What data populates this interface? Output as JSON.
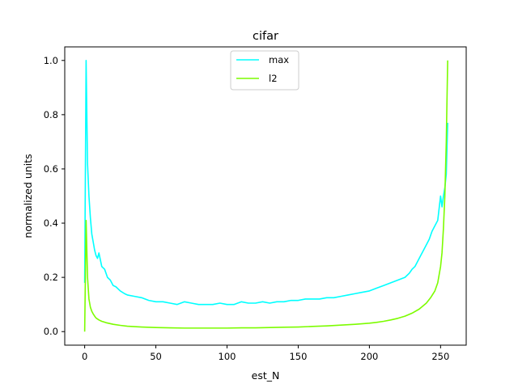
{
  "chart_data": {
    "type": "line",
    "title": "cifar",
    "xlabel": "est_N",
    "ylabel": "normalized units",
    "xlim": [
      -14,
      268
    ],
    "ylim": [
      -0.05,
      1.05
    ],
    "xticks": [
      0,
      50,
      100,
      150,
      200,
      250
    ],
    "yticks": [
      0.0,
      0.2,
      0.4,
      0.6,
      0.8,
      1.0
    ],
    "xtick_labels": [
      "0",
      "50",
      "100",
      "150",
      "200",
      "250"
    ],
    "ytick_labels": [
      "0.0",
      "0.2",
      "0.4",
      "0.6",
      "0.8",
      "1.0"
    ],
    "grid": false,
    "legend_position": "top-center",
    "series": [
      {
        "name": "max",
        "color": "#00ffff",
        "x": [
          0,
          1,
          2,
          3,
          4,
          5,
          6,
          7,
          8,
          9,
          10,
          12,
          14,
          16,
          18,
          20,
          22,
          25,
          28,
          30,
          35,
          40,
          45,
          50,
          55,
          60,
          65,
          70,
          75,
          80,
          85,
          90,
          95,
          100,
          105,
          110,
          115,
          120,
          125,
          130,
          135,
          140,
          145,
          150,
          155,
          160,
          165,
          170,
          175,
          180,
          185,
          190,
          195,
          200,
          205,
          210,
          215,
          220,
          225,
          228,
          230,
          232,
          234,
          236,
          238,
          240,
          242,
          244,
          246,
          248,
          250,
          251,
          252,
          253,
          254,
          255
        ],
        "y": [
          0.18,
          1.0,
          0.62,
          0.5,
          0.42,
          0.36,
          0.33,
          0.3,
          0.28,
          0.27,
          0.29,
          0.24,
          0.23,
          0.2,
          0.19,
          0.17,
          0.165,
          0.15,
          0.14,
          0.135,
          0.13,
          0.125,
          0.115,
          0.11,
          0.11,
          0.105,
          0.1,
          0.11,
          0.105,
          0.1,
          0.1,
          0.1,
          0.105,
          0.1,
          0.1,
          0.11,
          0.105,
          0.105,
          0.11,
          0.105,
          0.11,
          0.11,
          0.115,
          0.115,
          0.12,
          0.12,
          0.12,
          0.125,
          0.125,
          0.13,
          0.135,
          0.14,
          0.145,
          0.15,
          0.16,
          0.17,
          0.18,
          0.19,
          0.2,
          0.215,
          0.23,
          0.24,
          0.26,
          0.28,
          0.3,
          0.32,
          0.34,
          0.37,
          0.39,
          0.41,
          0.5,
          0.46,
          0.5,
          0.53,
          0.58,
          0.77
        ]
      },
      {
        "name": "l2",
        "color": "#7cfc00",
        "x": [
          0,
          1,
          2,
          3,
          4,
          5,
          6,
          7,
          8,
          10,
          12,
          15,
          20,
          25,
          30,
          40,
          50,
          60,
          70,
          80,
          90,
          100,
          110,
          120,
          130,
          140,
          150,
          160,
          170,
          180,
          190,
          200,
          205,
          210,
          215,
          220,
          225,
          230,
          235,
          240,
          243,
          246,
          248,
          250,
          251,
          252,
          253,
          254,
          255
        ],
        "y": [
          0.0,
          0.41,
          0.2,
          0.12,
          0.09,
          0.075,
          0.065,
          0.057,
          0.05,
          0.043,
          0.038,
          0.033,
          0.027,
          0.023,
          0.02,
          0.017,
          0.015,
          0.014,
          0.013,
          0.013,
          0.013,
          0.013,
          0.014,
          0.014,
          0.015,
          0.016,
          0.017,
          0.019,
          0.021,
          0.024,
          0.027,
          0.031,
          0.034,
          0.038,
          0.043,
          0.049,
          0.057,
          0.068,
          0.083,
          0.105,
          0.125,
          0.15,
          0.18,
          0.24,
          0.29,
          0.38,
          0.5,
          0.7,
          1.0
        ]
      }
    ]
  }
}
